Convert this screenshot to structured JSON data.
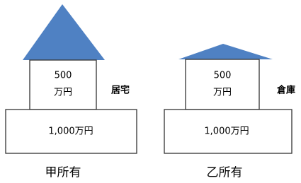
{
  "houses": [
    {
      "upper_lines": [
        "500",
        "万円"
      ],
      "side_label": "居宅",
      "base_label": "1,000万円",
      "owner": "甲所有"
    },
    {
      "upper_lines": [
        "500",
        "万円"
      ],
      "side_label": "倉庫",
      "base_label": "1,000万円",
      "owner": "乙所有"
    }
  ]
}
